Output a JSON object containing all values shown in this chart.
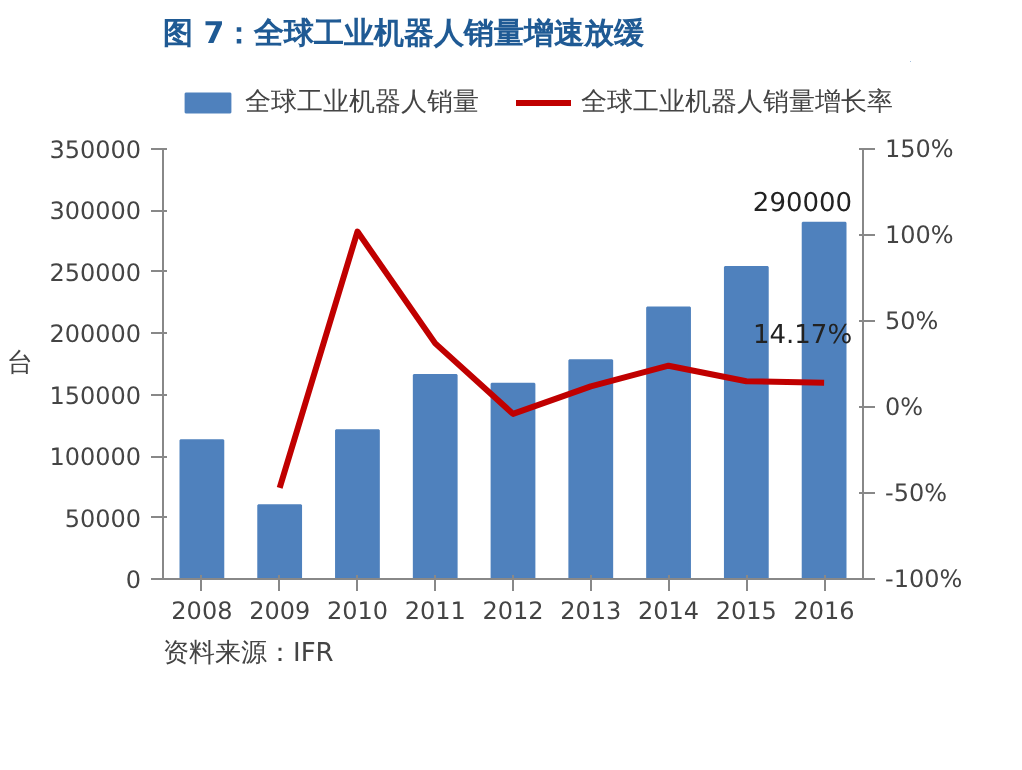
{
  "chart_data": {
    "type": "bar",
    "title": "图 7：全球工业机器人销量增速放缓",
    "ylabel": "台",
    "categories": [
      "2008",
      "2009",
      "2010",
      "2011",
      "2012",
      "2013",
      "2014",
      "2015",
      "2016"
    ],
    "series": [
      {
        "name": "全球工业机器人销量",
        "color": "#4f81bd",
        "values": [
          113000,
          60000,
          121000,
          166000,
          159000,
          178000,
          221000,
          254000,
          290000
        ],
        "value_labels": [
          null,
          null,
          null,
          null,
          null,
          null,
          null,
          null,
          "290000"
        ]
      },
      {
        "name": "全球工业机器人销量增长率",
        "type": "line",
        "axis": "y2",
        "color": "#c00000",
        "values": [
          null,
          -47,
          102,
          37,
          -4,
          12,
          24,
          15,
          14.17
        ],
        "value_labels": [
          null,
          null,
          null,
          null,
          null,
          null,
          null,
          null,
          "14.17%"
        ]
      }
    ],
    "ylim": [
      0,
      350000
    ],
    "yticks": [
      0,
      50000,
      100000,
      150000,
      200000,
      250000,
      300000,
      350000
    ],
    "y2lim": [
      -100,
      150
    ],
    "y2ticks": [
      {
        "value": -100,
        "label": "-100%"
      },
      {
        "value": -50,
        "label": "-50%"
      },
      {
        "value": 0,
        "label": "0%"
      },
      {
        "value": 50,
        "label": "50%"
      },
      {
        "value": 100,
        "label": "100%"
      },
      {
        "value": 150,
        "label": "150%"
      }
    ],
    "legend": "top",
    "grid": false,
    "annotations": [
      "资料来源：IFR"
    ]
  }
}
